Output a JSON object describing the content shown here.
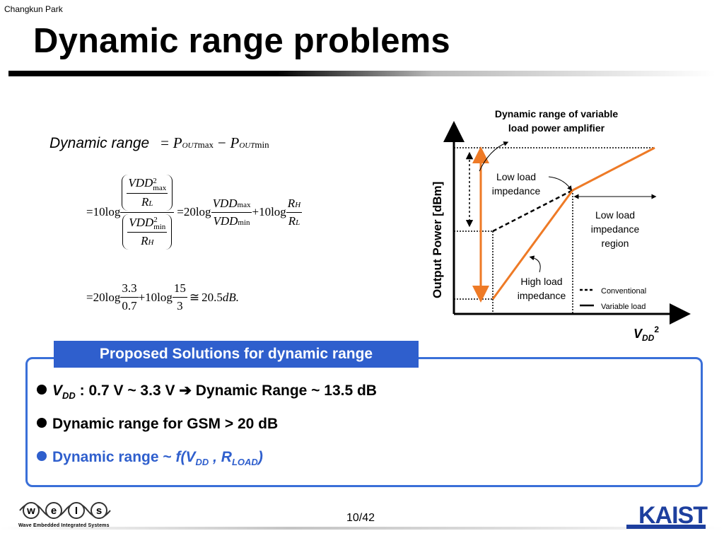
{
  "header": {
    "author": "Changkun Park",
    "title": "Dynamic range problems"
  },
  "equation": {
    "label": "Dynamic range",
    "line1_rhs_eq": "=",
    "p": "P",
    "out": "OUT",
    "max": "max",
    "min": "min",
    "minus": "−",
    "eq": "=",
    "ten": "10",
    "twenty": "20",
    "log": "log",
    "plus": "+",
    "vdd": "VDD",
    "two": "2",
    "r": "R",
    "sub_l": "L",
    "sub_h": "H",
    "num_3_3": "3.3",
    "den_0_7": "0.7",
    "num_15": "15",
    "den_3": "3",
    "approx": "≅",
    "result": "20.5",
    "db": "dB."
  },
  "diagram": {
    "title_line1": "Dynamic range of variable",
    "title_line2": "load power amplifier",
    "y_axis_label": "Output Power [dBm]",
    "x_axis_label_main": "V",
    "x_axis_label_sub": "DD",
    "x_axis_label_sup": "2",
    "label_low_load_line1": "Low load",
    "label_low_load_line2": "impedance",
    "label_region_line1": "Low load",
    "label_region_line2": "impedance",
    "label_region_line3": "region",
    "label_high_load_line1": "High load",
    "label_high_load_line2": "impedance",
    "legend": [
      {
        "label": "Conventional",
        "style": "dashed"
      },
      {
        "label": "Variable load",
        "style": "solid"
      }
    ],
    "colors": {
      "variable_load": "#ee7a26",
      "conventional": "#000000"
    }
  },
  "solutions": {
    "tab_label": "Proposed Solutions for dynamic range",
    "b1_v": "V",
    "b1_sub": "DD",
    "b1_text": ": 0.7 V ~ 3.3 V",
    "b1_arrow": "➔",
    "b1_tail": "Dynamic Range ~ 13.5 dB",
    "b2": "Dynamic range for GSM > 20 dB",
    "b3_text": "Dynamic range ~",
    "b3_f": "f(V",
    "b3_sub": "DD",
    "b3_comma": ", R",
    "b3_sub2": "LOAD",
    "b3_close": ")",
    "accent_color": "#2f5fcd"
  },
  "footer": {
    "page": "10/42",
    "logo_left_letters": [
      "w",
      "e",
      "I",
      "s"
    ],
    "logo_left_tagline": "Wave Embedded Integrated Systems",
    "logo_right": "KAIST"
  }
}
